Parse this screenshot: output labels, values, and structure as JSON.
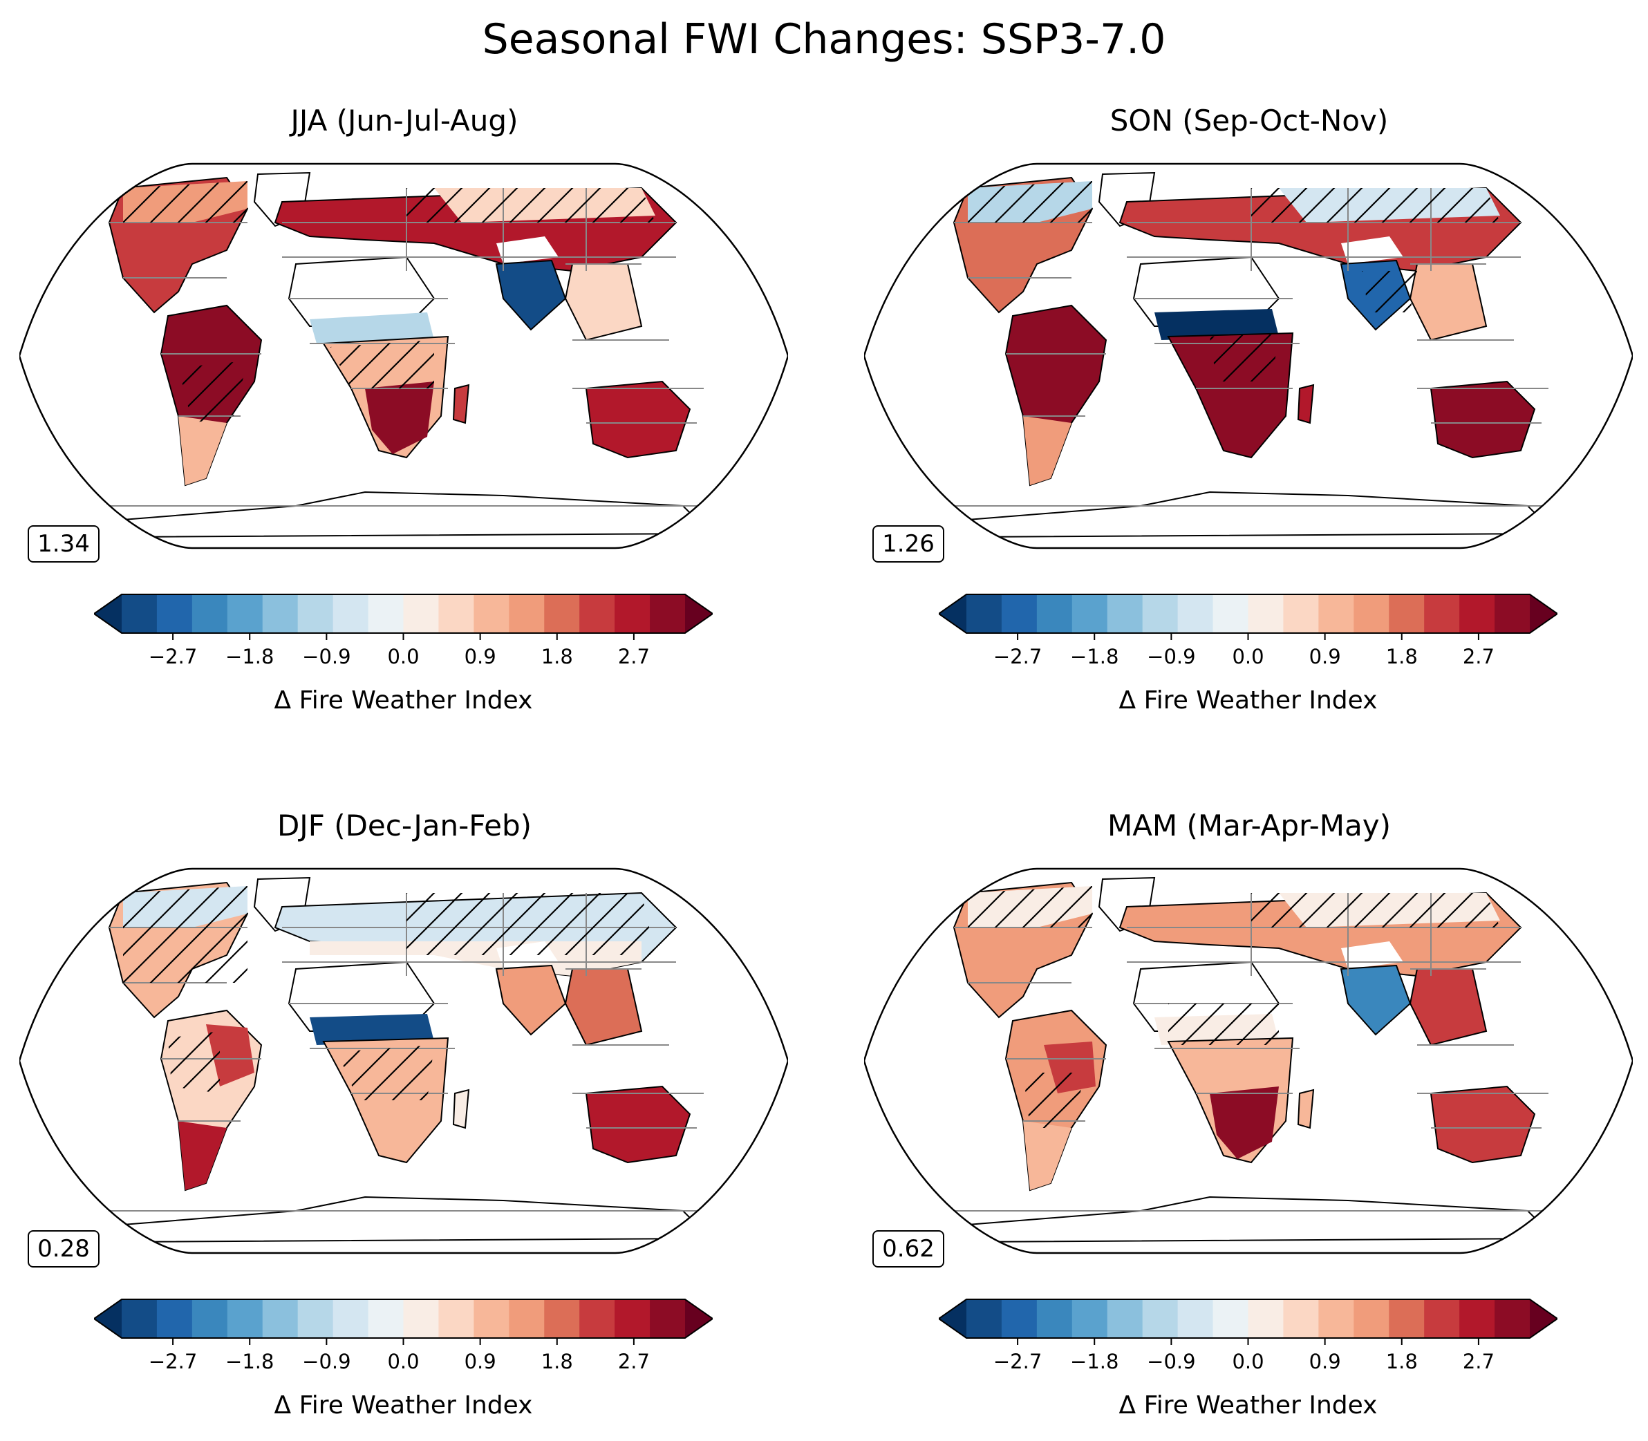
{
  "title": "Seasonal FWI Changes: SSP3-7.0",
  "colorbar": {
    "label": "Δ Fire Weather Index",
    "ticks": [
      "−2.7",
      "−1.8",
      "−0.9",
      "0.0",
      "0.9",
      "1.8",
      "2.7"
    ],
    "tick_values": [
      -2.7,
      -1.8,
      -0.9,
      0.0,
      0.9,
      1.8,
      2.7
    ],
    "range": [
      -3.3,
      3.3
    ],
    "extend": "both",
    "colors": [
      "#053061",
      "#134c87",
      "#2166ac",
      "#3a87bd",
      "#5aa2ce",
      "#8bc0dd",
      "#b6d7e8",
      "#d4e6f1",
      "#ebf2f5",
      "#f9ede5",
      "#fbd7c4",
      "#f7b799",
      "#f09c7b",
      "#dc6e57",
      "#c73b3e",
      "#b2182b",
      "#8c0c25",
      "#67001f"
    ]
  },
  "panels": [
    {
      "season": "JJA (Jun-Jul-Aug)",
      "global_mean": "1.34"
    },
    {
      "season": "SON (Sep-Oct-Nov)",
      "global_mean": "1.26"
    },
    {
      "season": "DJF (Dec-Jan-Feb)",
      "global_mean": "0.28"
    },
    {
      "season": "MAM (Mar-Apr-May)",
      "global_mean": "0.62"
    }
  ],
  "map": {
    "projection": "Robinson",
    "hatching": "hatched areas",
    "region_outlines": "IPCC AR6 land regions"
  }
}
